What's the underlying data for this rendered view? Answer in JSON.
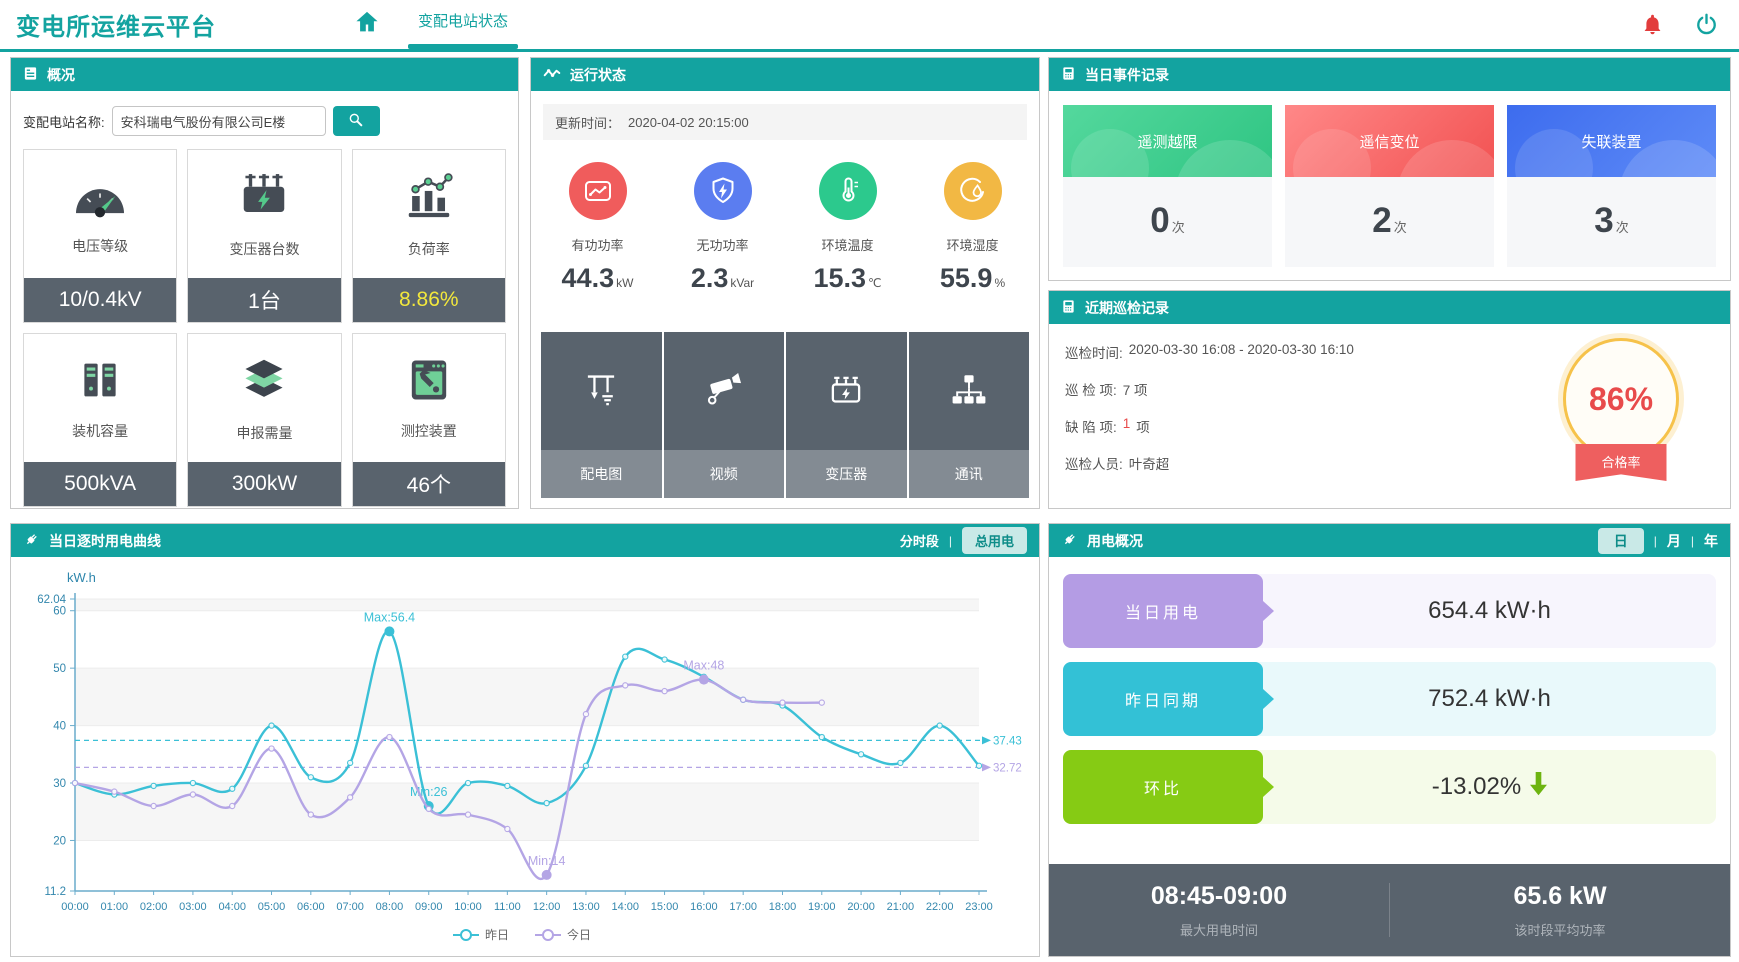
{
  "app": {
    "title": "变电所运维云平台",
    "nav_tab": "变配电站状态",
    "accent_color": "#13a3a0"
  },
  "icons": {
    "home-icon": "house glyph",
    "notification-bell-icon": "red bell",
    "power-icon": "power symbol",
    "search-icon": "magnifier",
    "list-icon": "form sheet",
    "pulse-icon": "wave line",
    "record-icon": "logger device",
    "plug-icon": "power plug",
    "down-arrow-icon": "green down arrow"
  },
  "overview": {
    "title": "概况",
    "station_label": "变配电站名称:",
    "station_value": "安科瑞电气股份有限公司E楼",
    "cards": [
      {
        "label": "电压等级",
        "value": "10/0.4kV",
        "icon": "gauge-icon"
      },
      {
        "label": "变压器台数",
        "value": "1台",
        "icon": "transformer-icon"
      },
      {
        "label": "负荷率",
        "value": "8.86%",
        "icon": "load-rate-chart-icon",
        "value_color": "#f2e73c"
      },
      {
        "label": "装机容量",
        "value": "500kVA",
        "icon": "installed-capacity-icon"
      },
      {
        "label": "申报需量",
        "value": "300kW",
        "icon": "declared-demand-icon"
      },
      {
        "label": "测控装置",
        "value": "46个",
        "icon": "monitoring-device-icon"
      }
    ]
  },
  "running": {
    "title": "运行状态",
    "update_label": "更新时间：",
    "update_time": "2020-04-02 20:15:00",
    "metrics": [
      {
        "label": "有功功率",
        "value": "44.3",
        "unit": "kW",
        "color": "#f05c5c",
        "icon": "trend-chart-icon"
      },
      {
        "label": "无功功率",
        "value": "2.3",
        "unit": "kVar",
        "color": "#5b7df0",
        "icon": "shield-lightning-icon"
      },
      {
        "label": "环境温度",
        "value": "15.3",
        "unit": "℃",
        "color": "#2cc98d",
        "icon": "thermometer-icon"
      },
      {
        "label": "环境湿度",
        "value": "55.9",
        "unit": "%",
        "color": "#f2b844",
        "icon": "humidity-icon"
      }
    ],
    "buttons": [
      {
        "label": "配电图",
        "icon": "distribution-diagram-icon"
      },
      {
        "label": "视频",
        "icon": "camera-icon"
      },
      {
        "label": "变压器",
        "icon": "transformer-outline-icon"
      },
      {
        "label": "通讯",
        "icon": "network-icon"
      }
    ]
  },
  "events": {
    "title": "当日事件记录",
    "cards": [
      {
        "label": "遥测越限",
        "count": "0",
        "unit": "次",
        "color": "#3ecf90"
      },
      {
        "label": "遥信变位",
        "count": "2",
        "unit": "次",
        "color": "#f56060"
      },
      {
        "label": "失联装置",
        "count": "3",
        "unit": "次",
        "color": "#4d7bf3"
      }
    ]
  },
  "inspection": {
    "title": "近期巡检记录",
    "time_label": "巡检时间:",
    "time_value": "2020-03-30 16:08 - 2020-03-30 16:10",
    "items_label": "巡 检 项:",
    "items_value": "7 项",
    "defect_label": "缺 陷 项:",
    "defect_value": "1",
    "defect_unit": "项",
    "person_label": "巡检人员:",
    "person_value": "叶奇超",
    "rate": "86%",
    "rate_label": "合格率"
  },
  "chart_panel": {
    "title": "当日逐时用电曲线",
    "tab_period": "分时段",
    "sep": "|",
    "tab_total": "总用电"
  },
  "chart_data": {
    "type": "line",
    "title": "当日逐时用电曲线",
    "ylabel": "kW.h",
    "ylim": [
      11.2,
      62.04
    ],
    "yticks": [
      11.2,
      20,
      30,
      40,
      50,
      60,
      62.04
    ],
    "x": [
      "00:00",
      "01:00",
      "02:00",
      "03:00",
      "04:00",
      "05:00",
      "06:00",
      "07:00",
      "08:00",
      "09:00",
      "10:00",
      "11:00",
      "12:00",
      "13:00",
      "14:00",
      "15:00",
      "16:00",
      "17:00",
      "18:00",
      "19:00",
      "20:00",
      "21:00",
      "22:00",
      "23:00"
    ],
    "series": [
      {
        "name": "昨日",
        "color": "#3bc0d6",
        "avg": 37.43,
        "values": [
          30,
          28,
          29.5,
          30,
          29,
          40,
          31,
          33.5,
          56.4,
          26,
          30,
          29.5,
          26.5,
          33,
          52,
          51.5,
          48.5,
          44.5,
          43.5,
          38,
          35,
          33.5,
          40,
          33
        ],
        "annotations": [
          {
            "label": "Max:56.4",
            "x": 8
          },
          {
            "label": "Min:26",
            "x": 9
          }
        ]
      },
      {
        "name": "今日",
        "color": "#b4a5e5",
        "avg": 32.72,
        "values": [
          30,
          28.5,
          26,
          28,
          26,
          36,
          24.5,
          27.5,
          38,
          25.5,
          24.5,
          22,
          14,
          42,
          47,
          46,
          48,
          44.5,
          44,
          44,
          null,
          null,
          null,
          null
        ],
        "annotations": [
          {
            "label": "Max:48",
            "x": 16
          },
          {
            "label": "Min:14",
            "x": 12
          }
        ]
      }
    ],
    "legend_position": "bottom",
    "grid": true
  },
  "usage": {
    "title": "用电概况",
    "tabs": [
      "日",
      "月",
      "年"
    ],
    "active_tab": "日",
    "sep": "|",
    "rows": [
      {
        "label": "当日用电",
        "value": "654.4 kW·h",
        "color": "#b49ce4"
      },
      {
        "label": "昨日同期",
        "value": "752.4 kW·h",
        "color": "#33c1d6"
      },
      {
        "label": "环比",
        "value": "-13.02%",
        "color": "#86cb14",
        "trend": "down"
      }
    ],
    "footer": [
      {
        "value": "08:45-09:00",
        "label": "最大用电时间"
      },
      {
        "value": "65.6 kW",
        "label": "该时段平均功率"
      }
    ]
  }
}
